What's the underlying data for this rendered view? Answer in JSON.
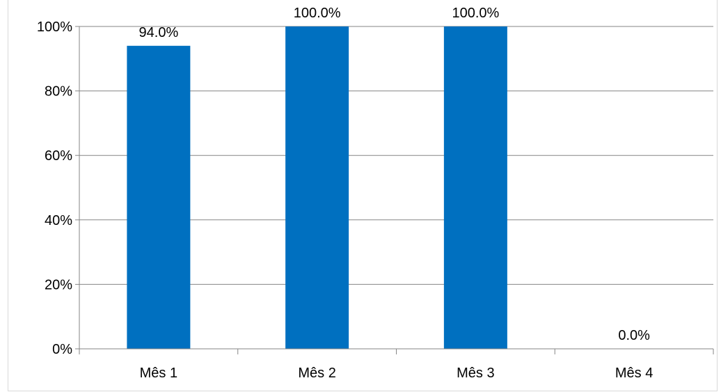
{
  "chart_data": {
    "type": "bar",
    "categories": [
      "Mês 1",
      "Mês 2",
      "Mês 3",
      "Mês 4"
    ],
    "values": [
      94.0,
      100.0,
      100.0,
      0.0
    ],
    "data_labels": [
      "94.0%",
      "100.0%",
      "100.0%",
      "0.0%"
    ],
    "y_ticks": [
      "0%",
      "20%",
      "40%",
      "60%",
      "80%",
      "100%"
    ],
    "ylim": [
      0,
      100
    ],
    "grid": true,
    "legend": "none",
    "bar_color": "#0070C0",
    "grid_color": "#868686"
  }
}
